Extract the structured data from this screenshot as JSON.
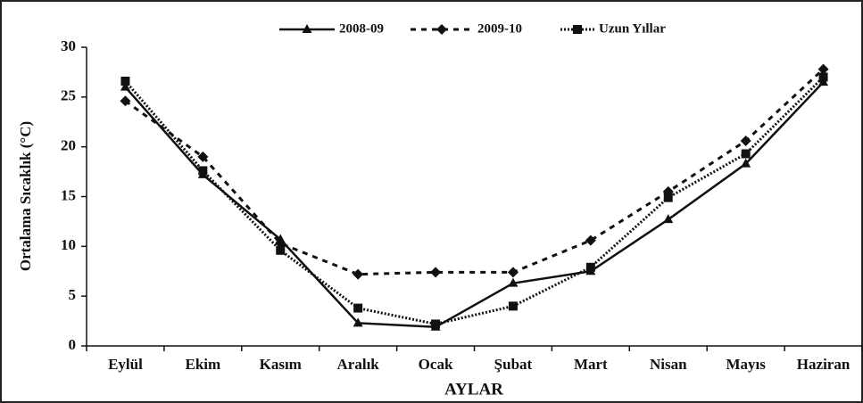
{
  "chart_data": {
    "type": "line",
    "y_label": "Ortalama Sıcaklık (°C)",
    "x_label": "AYLAR",
    "categories": [
      "Eylül",
      "Ekim",
      "Kasım",
      "Aralık",
      "Ocak",
      "Şubat",
      "Mart",
      "Nisan",
      "Mayıs",
      "Haziran"
    ],
    "series": [
      {
        "name": "2008-09",
        "color": "#111111",
        "dash": "solid",
        "marker": "triangle",
        "values": [
          26.0,
          17.2,
          10.7,
          2.3,
          1.9,
          6.3,
          7.5,
          12.7,
          18.3,
          26.5
        ]
      },
      {
        "name": "2009-10",
        "color": "#111111",
        "dash": "dashed",
        "marker": "diamond",
        "values": [
          24.6,
          19.0,
          10.3,
          7.2,
          7.4,
          7.4,
          10.6,
          15.5,
          20.6,
          27.8
        ]
      },
      {
        "name": "Uzun Yıllar",
        "color": "#111111",
        "dash": "dotted",
        "marker": "square",
        "values": [
          26.6,
          17.6,
          9.6,
          3.8,
          2.2,
          4.0,
          7.9,
          14.9,
          19.3,
          27.0
        ]
      }
    ],
    "ylim": [
      0,
      30
    ],
    "yticks": [
      0,
      5,
      10,
      15,
      20,
      25,
      30
    ],
    "grid": false,
    "legend": "top"
  }
}
